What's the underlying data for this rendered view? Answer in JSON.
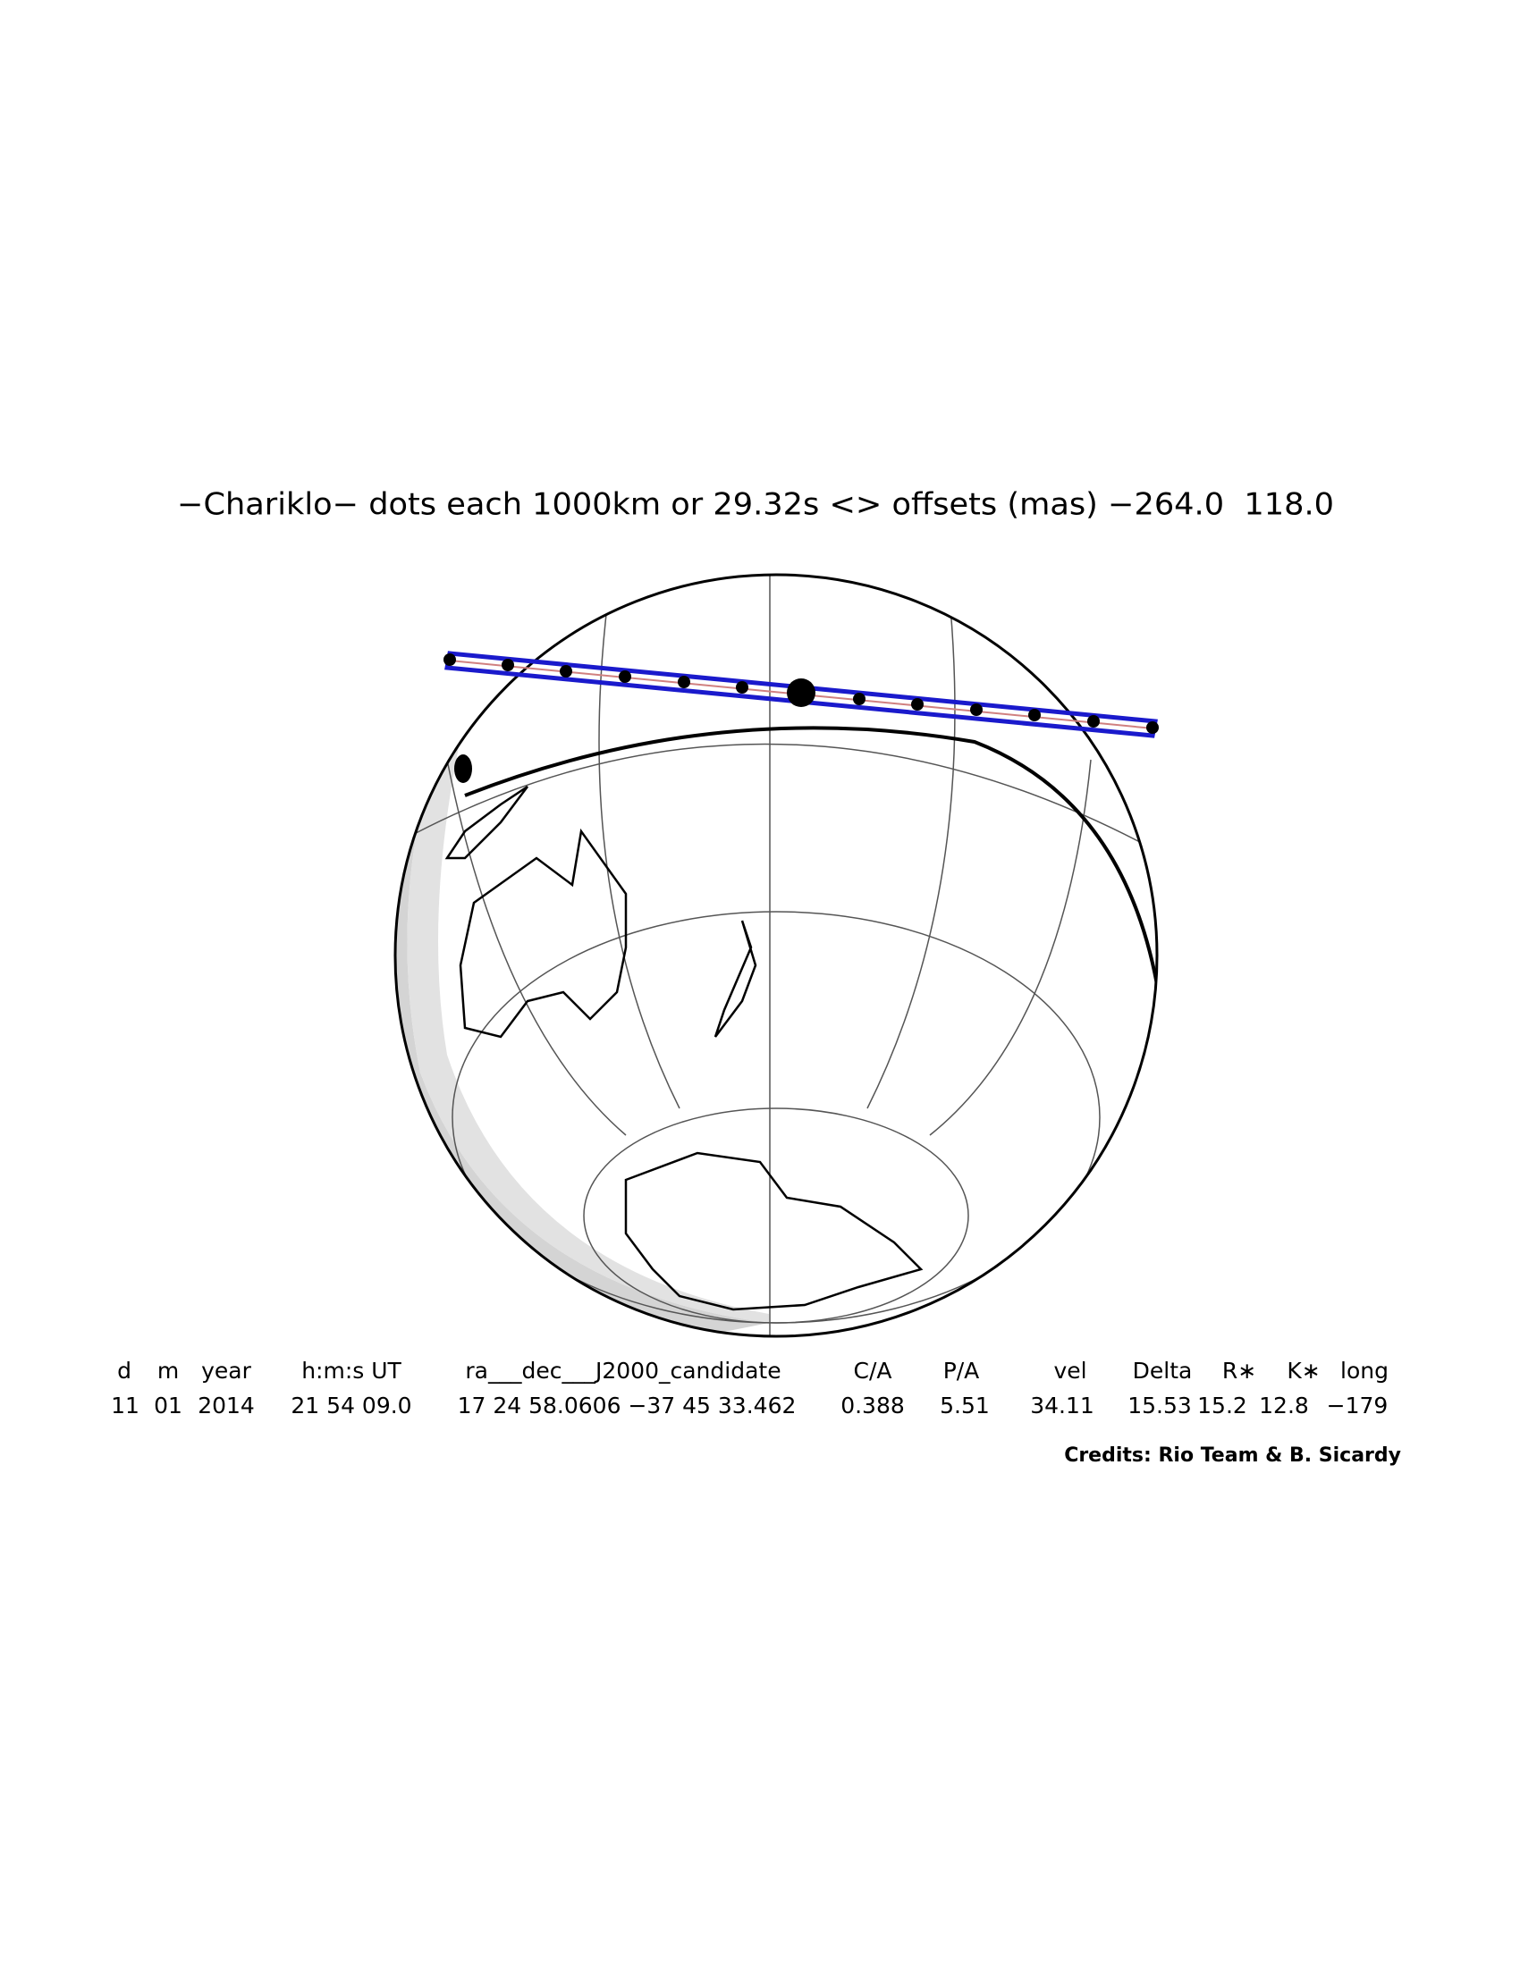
{
  "title": "−Chariklo− dots each 1000km or 29.32s <> offsets (mas) −264.0  118.0",
  "table": {
    "header": [
      "d",
      "m",
      "year",
      "h:m:s UT",
      "ra___dec___J2000_candidate",
      "C/A",
      "P/A",
      "vel",
      "Delta",
      "R∗",
      "K∗",
      "long"
    ],
    "values": [
      "11",
      "01",
      "2014",
      "21 54 09.0",
      "17 24 58.0606 −37 45 33.462",
      "0.388",
      "5.51",
      "34.11",
      "15.53",
      "15.2",
      "12.8",
      "−179"
    ]
  },
  "credits": "Credits: Rio Team & B. Sicardy"
}
